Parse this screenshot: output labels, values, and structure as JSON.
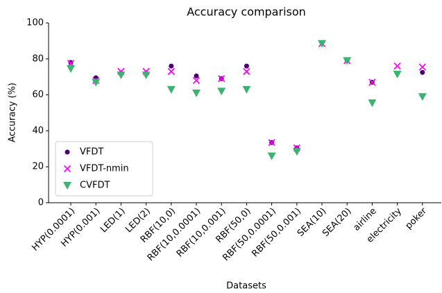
{
  "chart_data": {
    "type": "scatter",
    "title": "Accuracy comparison",
    "x_label": "Datasets",
    "y_label": "Accuracy (%)",
    "categories": [
      "HYP(0.0001)",
      "HYP(0.001)",
      "LED(1)",
      "LED(2)",
      "RBF(10,0)",
      "RBF(10,0.0001)",
      "RBF(10,0.001)",
      "RBF(50,0)",
      "RBF(50,0.0001)",
      "RBF(50,0.001)",
      "SEA(10)",
      "SEA(20)",
      "airline",
      "electricity",
      "poker"
    ],
    "series": [
      {
        "name": "VFDT",
        "color": "#4b0070",
        "marker": "circle",
        "values": [
          78,
          69.5,
          72,
          72,
          76,
          70.5,
          69,
          76,
          33.5,
          30.5,
          89,
          79,
          67,
          72,
          72.5
        ]
      },
      {
        "name": "VFDT-nmin",
        "color": "#ff00ff",
        "marker": "x",
        "values": [
          77.5,
          68,
          73,
          73,
          73,
          68,
          69,
          73,
          33.5,
          30.5,
          88.5,
          79,
          67,
          76,
          75.5
        ]
      },
      {
        "name": "CVFDT",
        "color": "#3cb371",
        "marker": "triangle-down",
        "values": [
          74.5,
          67,
          71,
          71,
          63,
          61,
          62,
          63,
          26,
          28.5,
          88.5,
          79,
          55.5,
          71.5,
          59
        ]
      }
    ],
    "ylim": [
      0,
      100
    ],
    "yticks": [
      0,
      20,
      40,
      60,
      80,
      100
    ],
    "grid": false,
    "legend": "lower left"
  }
}
